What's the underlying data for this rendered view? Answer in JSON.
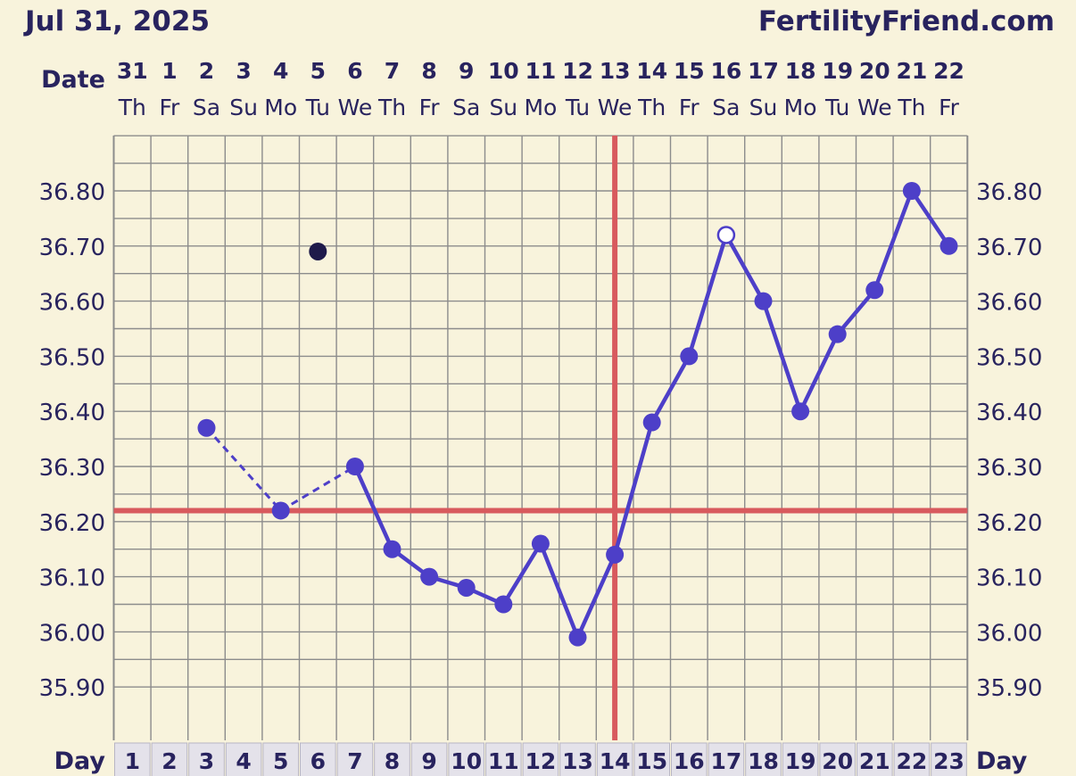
{
  "header": {
    "date": "Jul 31, 2025",
    "site": "FertilityFriend.com"
  },
  "labels": {
    "date_row": "Date",
    "day_row": "Day"
  },
  "colors": {
    "background": "#f8f3dc",
    "grid": "#8c8c8c",
    "line": "#4d3fc8",
    "coverline": "#d85a5e",
    "text": "#28235e",
    "day_cell": "#e4e2ea"
  },
  "chart_data": {
    "type": "line",
    "ylim": [
      35.82,
      36.92
    ],
    "y_ticks": [
      "36.80",
      "36.70",
      "36.60",
      "36.50",
      "36.40",
      "36.30",
      "36.20",
      "36.10",
      "36.00",
      "35.90"
    ],
    "dates": [
      "31",
      "1",
      "2",
      "3",
      "4",
      "5",
      "6",
      "7",
      "8",
      "9",
      "10",
      "11",
      "12",
      "13",
      "14",
      "15",
      "16",
      "17",
      "18",
      "19",
      "20",
      "21",
      "22"
    ],
    "weekdays": [
      "Th",
      "Fr",
      "Sa",
      "Su",
      "Mo",
      "Tu",
      "We",
      "Th",
      "Fr",
      "Sa",
      "Su",
      "Mo",
      "Tu",
      "We",
      "Th",
      "Fr",
      "Sa",
      "Su",
      "Mo",
      "Tu",
      "We",
      "Th",
      "Fr"
    ],
    "days": [
      "1",
      "2",
      "3",
      "4",
      "5",
      "6",
      "7",
      "8",
      "9",
      "10",
      "11",
      "12",
      "13",
      "14",
      "15",
      "16",
      "17",
      "18",
      "19",
      "20",
      "21",
      "22",
      "23"
    ],
    "points": [
      {
        "day": 3,
        "temp": 36.37,
        "style": "filled"
      },
      {
        "day": 5,
        "temp": 36.22,
        "style": "filled"
      },
      {
        "day": 6,
        "temp": 36.69,
        "style": "discarded"
      },
      {
        "day": 7,
        "temp": 36.3,
        "style": "filled"
      },
      {
        "day": 8,
        "temp": 36.15,
        "style": "filled"
      },
      {
        "day": 9,
        "temp": 36.1,
        "style": "filled"
      },
      {
        "day": 10,
        "temp": 36.08,
        "style": "filled"
      },
      {
        "day": 11,
        "temp": 36.05,
        "style": "filled"
      },
      {
        "day": 12,
        "temp": 36.16,
        "style": "filled"
      },
      {
        "day": 13,
        "temp": 35.99,
        "style": "filled"
      },
      {
        "day": 14,
        "temp": 36.14,
        "style": "filled"
      },
      {
        "day": 15,
        "temp": 36.38,
        "style": "filled"
      },
      {
        "day": 16,
        "temp": 36.5,
        "style": "filled"
      },
      {
        "day": 17,
        "temp": 36.72,
        "style": "open"
      },
      {
        "day": 18,
        "temp": 36.6,
        "style": "filled"
      },
      {
        "day": 19,
        "temp": 36.4,
        "style": "filled"
      },
      {
        "day": 20,
        "temp": 36.54,
        "style": "filled"
      },
      {
        "day": 21,
        "temp": 36.62,
        "style": "filled"
      },
      {
        "day": 22,
        "temp": 36.8,
        "style": "filled"
      },
      {
        "day": 23,
        "temp": 36.7,
        "style": "filled"
      }
    ],
    "segments": [
      {
        "from": 3,
        "to": 5,
        "style": "dashed"
      },
      {
        "from": 5,
        "to": 7,
        "style": "dashed"
      },
      {
        "from": 7,
        "to": 23,
        "style": "solid"
      }
    ],
    "coverline_temp": 36.22,
    "ovulation_day": 14,
    "grid": true
  }
}
